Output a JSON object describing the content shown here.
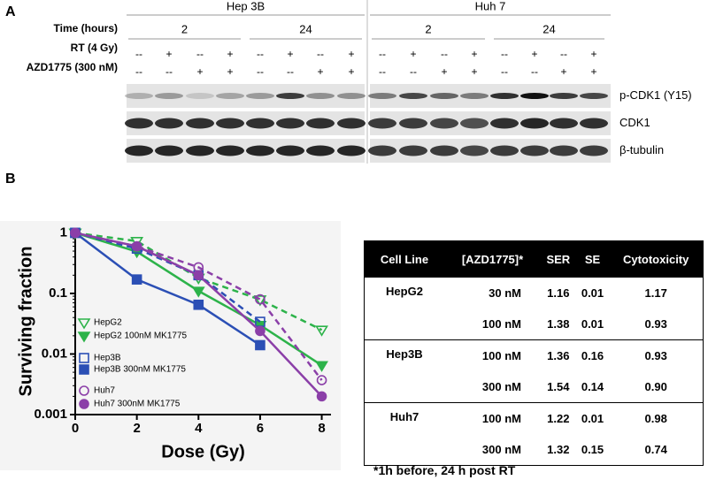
{
  "panel_a": {
    "label": "A",
    "cell_lines": [
      "Hep 3B",
      "Huh 7"
    ],
    "row_labels": [
      "Time (hours)",
      "RT (4 Gy)",
      "AZD1775 (300 nM)"
    ],
    "time_points": [
      "2",
      "24",
      "2",
      "24"
    ],
    "rt": [
      "--",
      "+",
      "--",
      "+",
      "--",
      "+",
      "--",
      "+",
      "--",
      "+",
      "--",
      "+",
      "--",
      "+",
      "--",
      "+"
    ],
    "azd": [
      "--",
      "--",
      "+",
      "+",
      "--",
      "--",
      "+",
      "+",
      "--",
      "--",
      "+",
      "+",
      "--",
      "--",
      "+",
      "+"
    ],
    "blots": [
      "p-CDK1 (Y15)",
      "CDK1",
      "β-tubulin"
    ]
  },
  "panel_b_label": "B",
  "chart_data": {
    "type": "line",
    "xlabel": "Dose (Gy)",
    "ylabel": "Surviving fraction",
    "x": [
      0,
      2,
      4,
      6,
      8
    ],
    "xlim": [
      0,
      8.3
    ],
    "xticks": [
      0,
      2,
      4,
      6,
      8
    ],
    "ylim": [
      0.001,
      1.2
    ],
    "yticks": [
      0.001,
      0.01,
      0.1,
      1
    ],
    "log_y": true,
    "series": [
      {
        "name": "HepG2",
        "color": "#2db34a",
        "marker": "triangle-down",
        "filled": false,
        "dashed": true,
        "values": [
          1,
          0.73,
          0.18,
          0.079,
          0.025
        ]
      },
      {
        "name": "HepG2 100nM MK1775",
        "color": "#2db34a",
        "marker": "triangle-down",
        "filled": true,
        "dashed": false,
        "values": [
          1,
          0.49,
          0.11,
          0.03,
          0.0065
        ]
      },
      {
        "name": "Hep3B",
        "color": "#2b4fb5",
        "marker": "square",
        "filled": false,
        "dashed": true,
        "values": [
          1,
          0.55,
          0.2,
          0.034,
          null
        ]
      },
      {
        "name": "Hep3B 300nM MK1775",
        "color": "#2b4fb5",
        "marker": "square",
        "filled": true,
        "dashed": false,
        "values": [
          1,
          0.17,
          0.065,
          0.014,
          null
        ]
      },
      {
        "name": "Huh7",
        "color": "#8b3fa8",
        "marker": "circle",
        "filled": false,
        "dashed": true,
        "values": [
          1,
          0.6,
          0.27,
          0.08,
          0.0037
        ]
      },
      {
        "name": "Huh7 300nM MK1775",
        "color": "#8b3fa8",
        "marker": "circle",
        "filled": true,
        "dashed": false,
        "values": [
          1,
          0.6,
          0.2,
          0.024,
          0.002
        ]
      }
    ]
  },
  "table": {
    "header": [
      "Cell Line",
      "[AZD1775]*",
      "SER",
      "SE",
      "Cytotoxicity"
    ],
    "groups": [
      {
        "cell_line": "HepG2",
        "rows": [
          [
            "30 nM",
            "1.16",
            "0.01",
            "1.17"
          ],
          [
            "100 nM",
            "1.38",
            "0.01",
            "0.93"
          ]
        ]
      },
      {
        "cell_line": "Hep3B",
        "rows": [
          [
            "100 nM",
            "1.36",
            "0.16",
            "0.93"
          ],
          [
            "300 nM",
            "1.54",
            "0.14",
            "0.90"
          ]
        ]
      },
      {
        "cell_line": "Huh7",
        "rows": [
          [
            "100 nM",
            "1.22",
            "0.01",
            "0.98"
          ],
          [
            "300 nM",
            "1.32",
            "0.15",
            "0.74"
          ]
        ]
      }
    ],
    "footnote": "*1h before, 24 h post RT"
  }
}
